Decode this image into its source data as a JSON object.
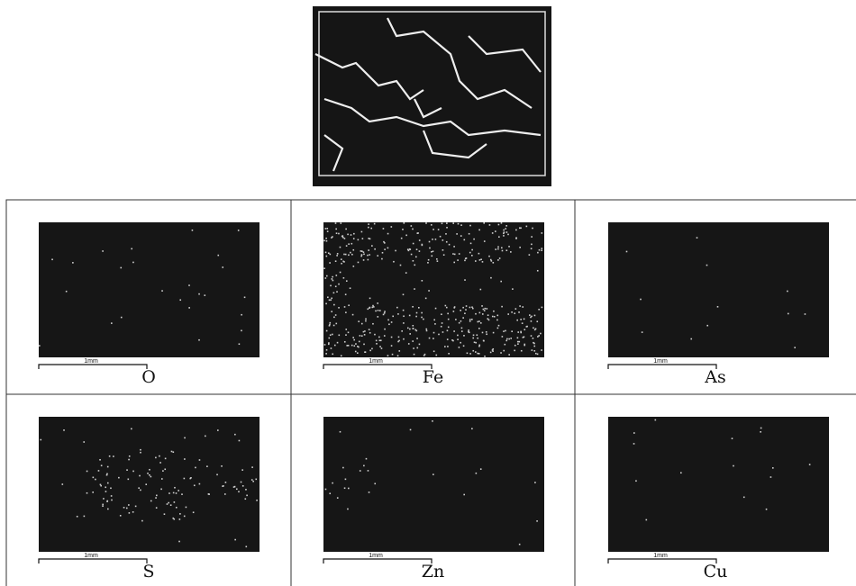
{
  "panels": [
    {
      "element": "O",
      "scale_label": "1mm"
    },
    {
      "element": "Fe",
      "scale_label": "1mm"
    },
    {
      "element": "As",
      "scale_label": "1mm"
    },
    {
      "element": "S",
      "scale_label": "1mm"
    },
    {
      "element": "Zn",
      "scale_label": "1mm"
    },
    {
      "element": "Cu",
      "scale_label": "1mm"
    }
  ]
}
